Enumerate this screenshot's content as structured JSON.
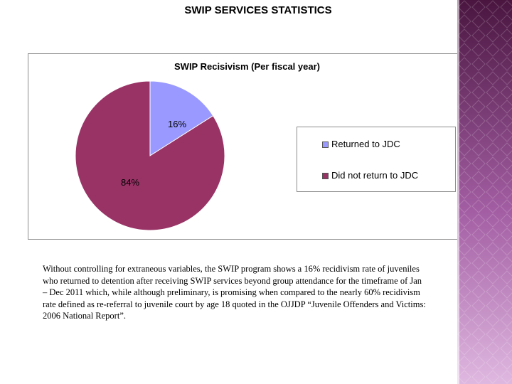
{
  "slide": {
    "title": "SWIP SERVICES STATISTICS",
    "body_text": "Without controlling for extraneous variables, the SWIP program shows a 16% recidivism rate of juveniles who returned to detention after receiving SWIP services beyond group attendance for the timeframe of Jan – Dec 2011 which, while although preliminary, is promising when compared to the nearly 60% recidivism rate defined as re-referral to juvenile court by age 18 quoted in the OJJDP “Juvenile Offenders and Victims: 2006 National Report”."
  },
  "colors": {
    "returned": "#9999ff",
    "not_returned": "#993366",
    "panel_dark": "#4a1640",
    "panel_light": "#d9aedb"
  },
  "chart_data": {
    "type": "pie",
    "title": "SWIP Recisivism (Per fiscal year)",
    "legend_position": "right",
    "slices": [
      {
        "label": "Returned to JDC",
        "value": 16,
        "display": "16%"
      },
      {
        "label": "Did not return to JDC",
        "value": 84,
        "display": "84%"
      }
    ]
  }
}
